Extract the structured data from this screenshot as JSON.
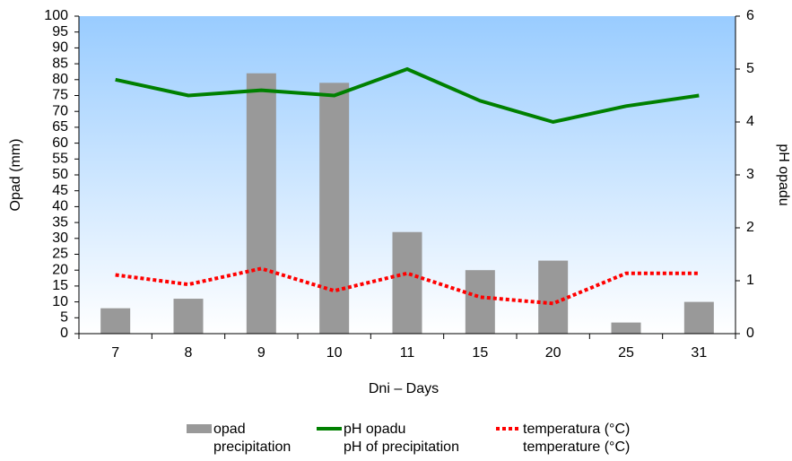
{
  "chart_data": {
    "type": "bar_line",
    "xlabel": "Dni – Days",
    "ylabel": "Opad (mm)",
    "y2label": "pH opadu",
    "categories": [
      "7",
      "8",
      "9",
      "10",
      "11",
      "15",
      "20",
      "25",
      "31"
    ],
    "series": [
      {
        "name": "opad",
        "name_en": "precipitation",
        "kind": "bar",
        "color": "#999999",
        "values": [
          8,
          11,
          82,
          79,
          32,
          20,
          23,
          3.5,
          10
        ]
      },
      {
        "name": "pH opadu",
        "name_en": "pH of precipitation",
        "kind": "line",
        "axis": "y2",
        "color": "#008000",
        "values": [
          4.8,
          4.5,
          4.6,
          4.5,
          5.0,
          4.4,
          4.0,
          4.3,
          4.5
        ]
      },
      {
        "name": "temperatura (°C)",
        "name_en": "temperature (°C)",
        "kind": "dotted",
        "color": "#ff0000",
        "values": [
          18.5,
          15.5,
          20.5,
          13.5,
          19,
          11.5,
          9.5,
          19,
          19
        ]
      }
    ],
    "ylim": [
      0,
      100
    ],
    "yticks": [
      0,
      5,
      10,
      15,
      20,
      25,
      30,
      35,
      40,
      45,
      50,
      55,
      60,
      65,
      70,
      75,
      80,
      85,
      90,
      95,
      100
    ],
    "y2lim": [
      0,
      6
    ],
    "y2ticks": [
      0,
      1,
      2,
      3,
      4,
      5,
      6
    ]
  }
}
